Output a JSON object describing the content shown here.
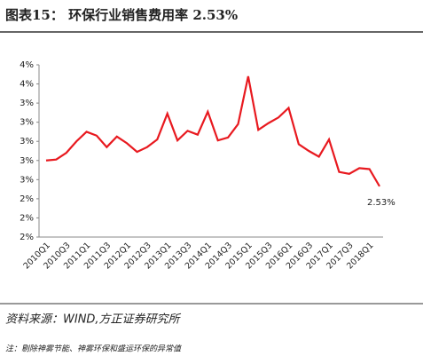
{
  "chart_data": {
    "type": "line",
    "title": "图表15：        环保行业销售费用率 2.53%",
    "source": "资料来源：WIND,方正证券研究所",
    "note": "注：剔除神雾节能、神雾环保和盛运环保的异常值",
    "categories": [
      "2010Q1",
      null,
      "2010Q3",
      null,
      "2011Q1",
      null,
      "2011Q3",
      null,
      "2012Q1",
      null,
      "2012Q3",
      null,
      "2013Q1",
      null,
      "2013Q3",
      null,
      "2014Q1",
      null,
      "2014Q3",
      null,
      "2015Q1",
      null,
      "2015Q3",
      null,
      "2016Q1",
      null,
      "2016Q3",
      null,
      "2017Q1",
      null,
      "2017Q3",
      null,
      "2018Q1",
      null
    ],
    "series": [
      {
        "name": "环保行业销售费用率",
        "color": "#e8191f",
        "values": [
          2.8,
          2.81,
          2.88,
          3.0,
          3.1,
          3.06,
          2.94,
          3.05,
          2.98,
          2.89,
          2.94,
          3.02,
          3.29,
          3.01,
          3.11,
          3.07,
          3.31,
          3.01,
          3.04,
          3.18,
          3.68,
          3.12,
          3.19,
          3.25,
          3.35,
          2.97,
          2.9,
          2.84,
          3.02,
          2.68,
          2.66,
          2.72,
          2.71,
          2.53
        ],
        "value_labels": [
          null,
          null,
          null,
          null,
          null,
          null,
          null,
          null,
          null,
          null,
          null,
          null,
          null,
          null,
          null,
          null,
          null,
          null,
          null,
          null,
          null,
          null,
          null,
          null,
          null,
          null,
          null,
          null,
          null,
          null,
          null,
          null,
          null,
          "2.53%"
        ]
      }
    ],
    "ylim": [
      2.0,
      3.8
    ],
    "yticks": [
      {
        "value": 2.0,
        "label": "2%"
      },
      {
        "value": 2.2,
        "label": "2%"
      },
      {
        "value": 2.4,
        "label": "2%"
      },
      {
        "value": 2.6,
        "label": "3%"
      },
      {
        "value": 2.8,
        "label": "3%"
      },
      {
        "value": 3.0,
        "label": "3%"
      },
      {
        "value": 3.2,
        "label": "3%"
      },
      {
        "value": 3.4,
        "label": "3%"
      },
      {
        "value": 3.6,
        "label": "4%"
      },
      {
        "value": 3.8,
        "label": "4%"
      }
    ],
    "grid": false
  }
}
